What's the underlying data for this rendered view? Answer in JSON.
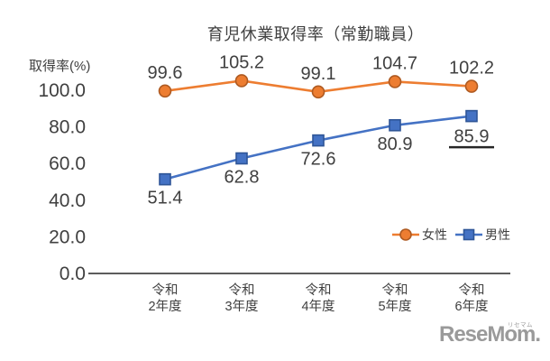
{
  "chart_data": {
    "type": "line",
    "title": "育児休業取得率（常勤職員）",
    "ylabel": "取得率(%)",
    "categories": [
      "令和2年度",
      "令和3年度",
      "令和4年度",
      "令和5年度",
      "令和6年度"
    ],
    "category_lines": [
      [
        "令和",
        "2年度"
      ],
      [
        "令和",
        "3年度"
      ],
      [
        "令和",
        "4年度"
      ],
      [
        "令和",
        "5年度"
      ],
      [
        "令和",
        "6年度"
      ]
    ],
    "y_ticks": [
      {
        "value": 0,
        "label": "0.0"
      },
      {
        "value": 20,
        "label": "20.0"
      },
      {
        "value": 40,
        "label": "40.0"
      },
      {
        "value": 60,
        "label": "60.0"
      },
      {
        "value": 80,
        "label": "80.0"
      },
      {
        "value": 100,
        "label": "100.0"
      }
    ],
    "ylim": [
      0,
      115
    ],
    "grid": false,
    "legend_position": "right-center",
    "series": [
      {
        "name": "女性",
        "marker": "circle",
        "color": "#ED7D31",
        "marker_border": "#AE5A21",
        "values": [
          99.6,
          105.2,
          99.1,
          104.7,
          102.2
        ],
        "labels": [
          "99.6",
          "105.2",
          "99.1",
          "104.7",
          "102.2"
        ],
        "label_position": "above"
      },
      {
        "name": "男性",
        "marker": "square",
        "color": "#4472C4",
        "marker_border": "#2E5597",
        "values": [
          51.4,
          62.8,
          72.6,
          80.9,
          85.9
        ],
        "labels": [
          "51.4",
          "62.8",
          "72.6",
          "80.9",
          "85.9"
        ],
        "label_position": "below"
      }
    ],
    "annotations": [
      {
        "type": "underline",
        "series_index": 1,
        "point_index": 4,
        "value": 85.9
      }
    ]
  },
  "watermark": {
    "text": "ReseMom.",
    "ruby": "リセマム"
  },
  "colors": {
    "text": "#404040",
    "axis": "#262626",
    "underline": "#262626",
    "watermark": "#9a9a9a",
    "background": "#ffffff"
  }
}
